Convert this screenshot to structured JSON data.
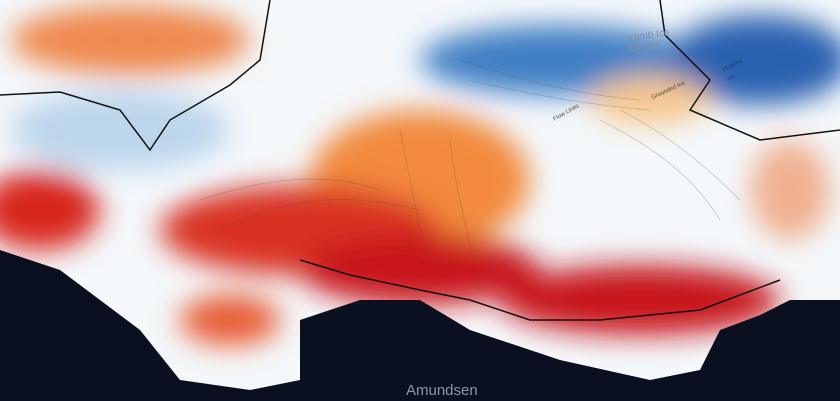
{
  "map": {
    "labels": {
      "kamb": "Kamb Ice Stream",
      "grounded": "Grounded Ice",
      "flow": "Flow Lines",
      "floating": "Floating Ice",
      "sea": "Amundsen"
    },
    "colors": {
      "ocean": "#0a1020",
      "thinning_strong": "#c8141c",
      "thinning": "#ef6a2c",
      "neutral": "#f4f8fb",
      "thickening": "#2a6ab8"
    }
  }
}
